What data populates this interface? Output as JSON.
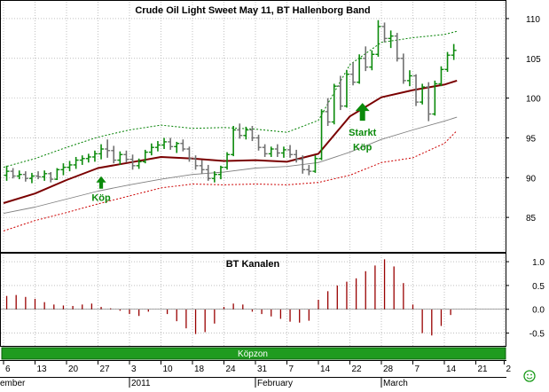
{
  "chart_data": [
    {
      "type": "ohlc+line",
      "title": "Crude Oil Light Sweet May 11, BT Hallenborg Band",
      "ylim": [
        81,
        112
      ],
      "y_ticks": [
        "110",
        "105",
        "100",
        "95",
        "90",
        "85"
      ],
      "grid": true,
      "annotations": [
        {
          "text": "Köp",
          "at_bar": 31,
          "price": 87.5,
          "arrow": "up"
        },
        {
          "text": "Starkt",
          "at_bar": 114,
          "price": 95.7,
          "arrow": "up"
        },
        {
          "text": "Köp",
          "at_bar": 114,
          "price": 93.9,
          "arrow": "none"
        }
      ],
      "bars": [
        [
          1,
          90.3,
          91.5,
          89.6,
          90.8,
          "green"
        ],
        [
          3,
          90.8,
          91.2,
          89.9,
          90.2,
          "gray"
        ],
        [
          5,
          90.2,
          90.9,
          89.8,
          90.4,
          "green"
        ],
        [
          7,
          90.4,
          90.8,
          89.5,
          89.9,
          "gray"
        ],
        [
          9,
          89.9,
          90.6,
          89.3,
          90.2,
          "green"
        ],
        [
          11,
          90.2,
          90.8,
          89.8,
          90.1,
          "gray"
        ],
        [
          13,
          90.1,
          90.9,
          89.6,
          90.5,
          "green"
        ],
        [
          15,
          90.5,
          90.7,
          89.4,
          89.8,
          "gray"
        ],
        [
          17,
          89.8,
          91.2,
          89.7,
          91.0,
          "green"
        ],
        [
          19,
          91.0,
          91.8,
          90.3,
          91.3,
          "green"
        ],
        [
          21,
          91.3,
          92.1,
          90.8,
          91.6,
          "green"
        ],
        [
          23,
          91.6,
          92.6,
          91.1,
          92.2,
          "green"
        ],
        [
          25,
          92.2,
          92.8,
          91.6,
          92.4,
          "green"
        ],
        [
          27,
          92.4,
          93.0,
          91.9,
          92.6,
          "green"
        ],
        [
          29,
          92.6,
          93.4,
          92.0,
          93.0,
          "green"
        ],
        [
          31,
          93.0,
          94.2,
          92.3,
          93.6,
          "green"
        ],
        [
          33,
          93.6,
          94.8,
          92.5,
          93.4,
          "gray"
        ],
        [
          35,
          93.4,
          94.0,
          91.8,
          92.2,
          "gray"
        ],
        [
          37,
          92.2,
          93.3,
          91.6,
          92.9,
          "green"
        ],
        [
          39,
          92.9,
          93.4,
          91.9,
          92.3,
          "gray"
        ],
        [
          41,
          92.3,
          92.9,
          91.0,
          91.5,
          "gray"
        ],
        [
          43,
          91.5,
          92.4,
          91.1,
          92.0,
          "green"
        ],
        [
          45,
          92.0,
          93.5,
          91.8,
          93.2,
          "green"
        ],
        [
          47,
          93.2,
          94.3,
          92.8,
          93.8,
          "green"
        ],
        [
          49,
          93.8,
          94.6,
          93.3,
          94.1,
          "green"
        ],
        [
          51,
          94.1,
          95.0,
          93.6,
          94.5,
          "green"
        ],
        [
          53,
          94.5,
          95.0,
          93.5,
          93.9,
          "gray"
        ],
        [
          55,
          93.9,
          94.5,
          93.1,
          94.3,
          "green"
        ],
        [
          57,
          94.3,
          94.8,
          93.3,
          93.6,
          "gray"
        ],
        [
          59,
          93.6,
          93.9,
          92.0,
          92.4,
          "gray"
        ],
        [
          61,
          92.4,
          92.8,
          91.0,
          91.5,
          "gray"
        ],
        [
          63,
          91.5,
          92.2,
          90.5,
          91.0,
          "gray"
        ],
        [
          65,
          91.0,
          91.6,
          89.6,
          89.9,
          "gray"
        ],
        [
          67,
          89.9,
          90.8,
          89.4,
          90.4,
          "green"
        ],
        [
          69,
          90.4,
          91.5,
          89.8,
          91.3,
          "green"
        ],
        [
          71,
          91.3,
          93.2,
          91.0,
          92.9,
          "green"
        ],
        [
          73,
          92.9,
          96.5,
          92.7,
          96.0,
          "green"
        ],
        [
          75,
          96.0,
          96.8,
          94.9,
          95.3,
          "gray"
        ],
        [
          77,
          95.3,
          96.4,
          94.8,
          96.0,
          "green"
        ],
        [
          79,
          96.0,
          96.5,
          94.6,
          95.0,
          "gray"
        ],
        [
          81,
          95.0,
          95.4,
          93.4,
          93.8,
          "gray"
        ],
        [
          83,
          93.8,
          94.2,
          92.6,
          93.0,
          "gray"
        ],
        [
          85,
          93.0,
          93.9,
          92.6,
          93.6,
          "green"
        ],
        [
          87,
          93.6,
          94.2,
          92.6,
          93.1,
          "gray"
        ],
        [
          89,
          93.1,
          93.9,
          92.5,
          93.5,
          "green"
        ],
        [
          91,
          93.5,
          94.1,
          92.5,
          92.9,
          "gray"
        ],
        [
          93,
          92.9,
          93.5,
          91.9,
          92.3,
          "gray"
        ],
        [
          95,
          92.3,
          92.8,
          90.5,
          91.0,
          "gray"
        ],
        [
          97,
          91.0,
          91.6,
          90.3,
          90.8,
          "gray"
        ],
        [
          99,
          90.8,
          92.8,
          90.6,
          92.4,
          "green"
        ],
        [
          101,
          92.4,
          98.6,
          92.2,
          98.3,
          "green"
        ],
        [
          103,
          98.3,
          100.0,
          96.5,
          97.0,
          "gray"
        ],
        [
          105,
          97.0,
          101.8,
          96.7,
          101.5,
          "green"
        ],
        [
          107,
          101.5,
          102.8,
          98.5,
          99.0,
          "gray"
        ],
        [
          109,
          99.0,
          103.5,
          98.8,
          103.0,
          "green"
        ],
        [
          111,
          103.0,
          104.5,
          101.6,
          102.0,
          "gray"
        ],
        [
          113,
          102.0,
          105.5,
          101.8,
          105.0,
          "green"
        ],
        [
          115,
          105.0,
          106.5,
          103.4,
          103.9,
          "gray"
        ],
        [
          117,
          103.9,
          106.0,
          103.5,
          105.5,
          "green"
        ],
        [
          119,
          105.5,
          109.8,
          105.2,
          109.0,
          "green"
        ],
        [
          121,
          109.0,
          109.5,
          107.0,
          107.5,
          "gray"
        ],
        [
          123,
          107.5,
          108.5,
          106.3,
          107.8,
          "green"
        ],
        [
          125,
          107.8,
          108.2,
          104.6,
          105.0,
          "gray"
        ],
        [
          127,
          105.0,
          105.6,
          101.8,
          102.2,
          "gray"
        ],
        [
          129,
          102.2,
          103.5,
          101.5,
          102.8,
          "green"
        ],
        [
          131,
          102.8,
          103.0,
          99.0,
          99.5,
          "gray"
        ],
        [
          133,
          99.5,
          101.8,
          99.2,
          101.4,
          "green"
        ],
        [
          135,
          101.4,
          102.0,
          97.1,
          98.0,
          "gray"
        ],
        [
          137,
          98.0,
          102.2,
          97.8,
          101.8,
          "green"
        ],
        [
          139,
          101.8,
          104.0,
          101.5,
          103.6,
          "green"
        ],
        [
          141,
          103.6,
          105.8,
          103.3,
          105.4,
          "green"
        ],
        [
          143,
          105.4,
          106.8,
          104.8,
          106.0,
          "green"
        ]
      ],
      "series": [
        {
          "name": "",
          "color": "#7a0000",
          "style": "solid-thick",
          "x": [
            0,
            10,
            20,
            30,
            40,
            50,
            60,
            70,
            80,
            90,
            100,
            110,
            120,
            130,
            140,
            144
          ],
          "y": [
            86.8,
            88.0,
            89.7,
            91.2,
            91.9,
            92.6,
            92.4,
            92.1,
            92.2,
            92.0,
            93.0,
            97.7,
            100.1,
            101.0,
            101.7,
            102.2
          ]
        },
        {
          "name": "",
          "color": "#808080",
          "style": "solid-thin",
          "x": [
            0,
            10,
            20,
            30,
            40,
            50,
            60,
            70,
            80,
            90,
            100,
            110,
            120,
            130,
            140,
            144
          ],
          "y": [
            85.5,
            86.3,
            87.3,
            88.3,
            89.1,
            89.8,
            90.4,
            90.7,
            91.2,
            91.4,
            91.9,
            93.2,
            94.8,
            96.0,
            97.1,
            97.6
          ]
        },
        {
          "name": "",
          "color": "#008000",
          "style": "dotted",
          "x": [
            0,
            10,
            20,
            30,
            40,
            50,
            60,
            70,
            80,
            90,
            100,
            110,
            120,
            130,
            140,
            144
          ],
          "y": [
            91.3,
            92.4,
            93.8,
            95.1,
            96.0,
            96.6,
            96.2,
            96.3,
            96.1,
            95.7,
            97.2,
            104.2,
            107.0,
            107.6,
            108.0,
            108.4
          ]
        },
        {
          "name": "",
          "color": "#cc0000",
          "style": "dotted",
          "x": [
            0,
            10,
            20,
            30,
            40,
            50,
            60,
            70,
            80,
            90,
            100,
            110,
            120,
            130,
            140,
            144
          ],
          "y": [
            83.3,
            84.6,
            85.6,
            86.7,
            87.7,
            88.7,
            89.2,
            89.1,
            89.2,
            89.1,
            89.4,
            90.3,
            91.9,
            92.5,
            94.3,
            95.9
          ]
        }
      ]
    },
    {
      "type": "bar",
      "title": "BT Kanalen",
      "ylim": [
        -0.75,
        1.15
      ],
      "y_ticks": [
        "1.0",
        "0.5",
        "0.0",
        "-0.5"
      ],
      "grid": true,
      "x": [
        1,
        4,
        7,
        10,
        13,
        16,
        19,
        22,
        25,
        28,
        31,
        34,
        37,
        40,
        43,
        46,
        49,
        52,
        55,
        58,
        61,
        64,
        67,
        70,
        73,
        76,
        79,
        82,
        85,
        88,
        91,
        94,
        97,
        100,
        103,
        106,
        109,
        112,
        115,
        118,
        121,
        124,
        127,
        130,
        133,
        136,
        139,
        142
      ],
      "values": [
        0.28,
        0.3,
        0.26,
        0.22,
        0.15,
        0.1,
        0.08,
        0.07,
        0.1,
        0.12,
        0.05,
        0.02,
        -0.03,
        -0.1,
        -0.14,
        -0.05,
        0.0,
        -0.1,
        -0.25,
        -0.4,
        -0.52,
        -0.48,
        -0.3,
        0.05,
        0.12,
        0.1,
        -0.05,
        -0.1,
        -0.15,
        -0.2,
        -0.26,
        -0.28,
        -0.24,
        0.2,
        0.38,
        0.5,
        0.58,
        0.65,
        0.8,
        0.92,
        1.05,
        0.9,
        0.55,
        0.1,
        -0.5,
        -0.55,
        -0.35,
        -0.12
      ],
      "color": "#990000"
    }
  ],
  "x_axis": {
    "band_label": "Köpzon",
    "ticks": [
      {
        "label": "6",
        "bar": 0
      },
      {
        "label": "13",
        "bar": 10
      },
      {
        "label": "20",
        "bar": 20
      },
      {
        "label": "27",
        "bar": 30
      },
      {
        "label": "3",
        "bar": 40
      },
      {
        "label": "10",
        "bar": 50
      },
      {
        "label": "18",
        "bar": 60
      },
      {
        "label": "24",
        "bar": 70
      },
      {
        "label": "31",
        "bar": 80
      },
      {
        "label": "7",
        "bar": 90
      },
      {
        "label": "14",
        "bar": 100
      },
      {
        "label": "22",
        "bar": 110
      },
      {
        "label": "28",
        "bar": 120
      },
      {
        "label": "7",
        "bar": 130
      },
      {
        "label": "14",
        "bar": 140
      },
      {
        "label": "21",
        "bar": 150
      },
      {
        "label": "2",
        "bar": 159
      }
    ],
    "months": [
      {
        "label": "ember",
        "bar": 0
      },
      {
        "label": "2011",
        "bar": 40
      },
      {
        "label": "February",
        "bar": 80
      },
      {
        "label": "March",
        "bar": 120
      }
    ]
  },
  "icons": {
    "corner": "smiley-icon"
  }
}
